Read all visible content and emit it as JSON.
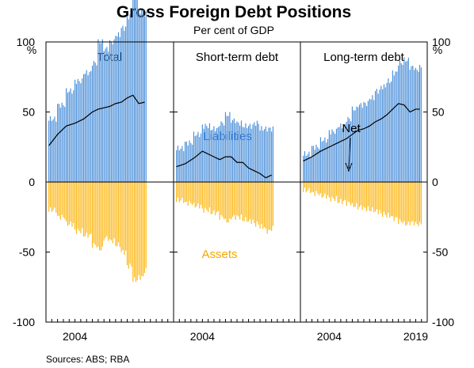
{
  "chart_data": {
    "type": "bar",
    "title": "Gross Foreign Debt Positions",
    "subtitle": "Per cent of GDP",
    "ylabel_left": "%",
    "ylabel_right": "%",
    "ylim": [
      -100,
      100
    ],
    "y_ticks_left": [
      "100",
      "50",
      "0",
      "-50",
      "-100"
    ],
    "y_ticks_right": [
      "100",
      "50",
      "0",
      "-50",
      "-100"
    ],
    "x_range": [
      1999,
      2021
    ],
    "x_tick_labels": [
      "2004",
      "2004",
      "2004",
      "2019"
    ],
    "source": "Sources:   ABS; RBA",
    "colors": {
      "liabilities": "#4b8fd9",
      "assets": "#fdb714",
      "net": "#000000",
      "liabilities_label": "#3a7fd4",
      "assets_label": "#f5a800"
    },
    "annotations": {
      "liabilities": "Liabilities",
      "assets": "Assets",
      "net": "Net"
    },
    "panels": [
      {
        "title": "Total",
        "series": [
          {
            "name": "Liabilities",
            "x": [
              1999.5,
              2001,
              2002.5,
              2004,
              2005.5,
              2007,
              2008,
              2009,
              2010,
              2011,
              2012,
              2013,
              2014,
              2015,
              2016
            ],
            "values": [
              45,
              55,
              65,
              72,
              78,
              85,
              100,
              95,
              100,
              105,
              110,
              118,
              133,
              122,
              120
            ]
          },
          {
            "name": "Assets",
            "x": [
              1999.5,
              2001,
              2002.5,
              2004,
              2005.5,
              2007,
              2008,
              2009,
              2010,
              2011,
              2012,
              2013,
              2014,
              2015,
              2016
            ],
            "values": [
              -20,
              -25,
              -30,
              -35,
              -38,
              -45,
              -48,
              -40,
              -42,
              -45,
              -50,
              -60,
              -70,
              -68,
              -63
            ]
          },
          {
            "name": "Net",
            "x": [
              1999.5,
              2001,
              2002.5,
              2004,
              2005.5,
              2007,
              2008,
              2009,
              2010,
              2011,
              2012,
              2013,
              2014,
              2015,
              2016
            ],
            "values": [
              26,
              34,
              40,
              42,
              45,
              50,
              52,
              53,
              54,
              56,
              57,
              60,
              62,
              56,
              57
            ]
          }
        ]
      },
      {
        "title": "Short-term debt",
        "series": [
          {
            "name": "Liabilities",
            "x": [
              1999.5,
              2001,
              2002.5,
              2004,
              2005.5,
              2007,
              2008,
              2009,
              2010,
              2011,
              2012,
              2013,
              2014,
              2015,
              2016
            ],
            "values": [
              24,
              28,
              34,
              40,
              38,
              42,
              48,
              44,
              42,
              40,
              40,
              42,
              38,
              38,
              38
            ]
          },
          {
            "name": "Assets",
            "x": [
              1999.5,
              2001,
              2002.5,
              2004,
              2005.5,
              2007,
              2008,
              2009,
              2010,
              2011,
              2012,
              2013,
              2014,
              2015,
              2016
            ],
            "values": [
              -13,
              -15,
              -17,
              -20,
              -22,
              -25,
              -28,
              -25,
              -25,
              -27,
              -28,
              -30,
              -32,
              -35,
              -33
            ]
          },
          {
            "name": "Net",
            "x": [
              1999.5,
              2001,
              2002.5,
              2004,
              2005.5,
              2007,
              2008,
              2009,
              2010,
              2011,
              2012,
              2013,
              2014,
              2015,
              2016
            ],
            "values": [
              11,
              13,
              17,
              22,
              19,
              16,
              18,
              18,
              14,
              14,
              10,
              8,
              6,
              3,
              5
            ]
          }
        ]
      },
      {
        "title": "Long-term debt",
        "series": [
          {
            "name": "Liabilities",
            "x": [
              1999.5,
              2001,
              2002.5,
              2004,
              2005.5,
              2007,
              2008,
              2009,
              2010,
              2011,
              2012,
              2013,
              2014,
              2015,
              2016,
              2017,
              2018,
              2019,
              2019.7
            ],
            "values": [
              20,
              25,
              30,
              36,
              40,
              45,
              52,
              55,
              56,
              60,
              65,
              68,
              72,
              78,
              85,
              87,
              82,
              80,
              82
            ]
          },
          {
            "name": "Assets",
            "x": [
              1999.5,
              2001,
              2002.5,
              2004,
              2005.5,
              2007,
              2008,
              2009,
              2010,
              2011,
              2012,
              2013,
              2014,
              2015,
              2016,
              2017,
              2018,
              2019,
              2019.7
            ],
            "values": [
              -6,
              -8,
              -10,
              -12,
              -14,
              -15,
              -17,
              -18,
              -19,
              -20,
              -21,
              -23,
              -24,
              -26,
              -28,
              -30,
              -29,
              -30,
              -30
            ]
          },
          {
            "name": "Net",
            "x": [
              1999.5,
              2001,
              2002.5,
              2004,
              2005.5,
              2007,
              2008,
              2009,
              2010,
              2011,
              2012,
              2013,
              2014,
              2015,
              2016,
              2017,
              2018,
              2019,
              2019.7
            ],
            "values": [
              15,
              18,
              22,
              25,
              28,
              31,
              34,
              37,
              38,
              40,
              43,
              45,
              48,
              52,
              56,
              55,
              50,
              52,
              52
            ]
          }
        ]
      }
    ]
  }
}
